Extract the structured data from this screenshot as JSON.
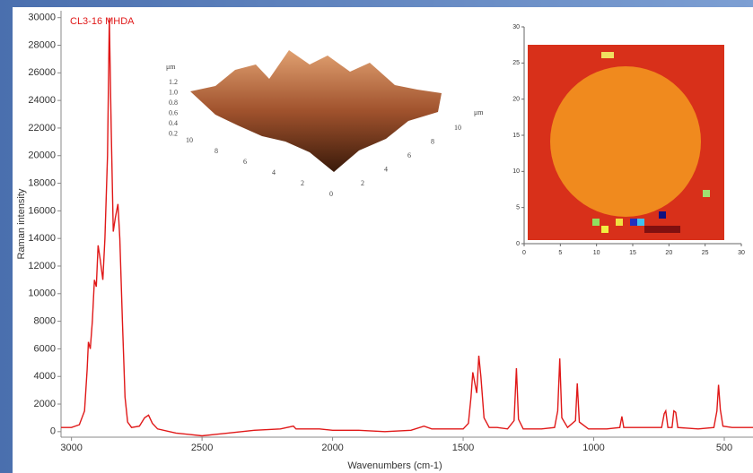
{
  "chart_data": [
    {
      "type": "line",
      "title": "CL3-16 MHDA",
      "x_label": "Wavenumbers (cm-1)",
      "y_label": "Raman intensity",
      "xlim": [
        3040,
        390
      ],
      "ylim": [
        -400,
        30500
      ],
      "xticks": [
        3000,
        2500,
        2000,
        1500,
        1000,
        500
      ],
      "yticks": [
        0,
        2000,
        4000,
        6000,
        8000,
        10000,
        12000,
        14000,
        16000,
        18000,
        20000,
        22000,
        24000,
        26000,
        28000,
        30000
      ],
      "x": [
        3040,
        3000,
        2970,
        2950,
        2940,
        2935,
        2928,
        2920,
        2912,
        2905,
        2898,
        2890,
        2880,
        2872,
        2862,
        2855,
        2848,
        2840,
        2832,
        2822,
        2815,
        2805,
        2795,
        2785,
        2770,
        2740,
        2720,
        2705,
        2690,
        2670,
        2600,
        2550,
        2500,
        2450,
        2400,
        2300,
        2200,
        2150,
        2140,
        2050,
        2000,
        1900,
        1800,
        1700,
        1650,
        1620,
        1550,
        1500,
        1480,
        1470,
        1463,
        1455,
        1448,
        1440,
        1432,
        1420,
        1400,
        1370,
        1330,
        1305,
        1296,
        1288,
        1270,
        1200,
        1150,
        1138,
        1130,
        1122,
        1100,
        1070,
        1063,
        1055,
        1020,
        950,
        900,
        892,
        885,
        800,
        740,
        730,
        724,
        716,
        700,
        693,
        686,
        678,
        600,
        540,
        528,
        522,
        515,
        505,
        470,
        390
      ],
      "series": [
        {
          "name": "CL3-16 MHDA",
          "color": "#e01818",
          "values": [
            300,
            300,
            500,
            1500,
            4500,
            6500,
            6000,
            8000,
            11000,
            10500,
            13500,
            12500,
            11000,
            14000,
            20000,
            30000,
            22000,
            14500,
            15500,
            16500,
            14000,
            8000,
            2500,
            700,
            300,
            400,
            1000,
            1200,
            600,
            200,
            -100,
            -200,
            -300,
            -200,
            -100,
            100,
            200,
            400,
            200,
            200,
            100,
            100,
            0,
            100,
            400,
            200,
            200,
            200,
            600,
            2500,
            4300,
            3500,
            2800,
            5500,
            4000,
            1000,
            300,
            300,
            200,
            800,
            4600,
            900,
            200,
            200,
            300,
            1500,
            5300,
            1000,
            300,
            800,
            3500,
            700,
            200,
            200,
            300,
            1100,
            300,
            300,
            300,
            1300,
            1500,
            300,
            300,
            1500,
            1400,
            300,
            200,
            300,
            1500,
            3400,
            1600,
            400,
            300,
            300
          ]
        }
      ]
    },
    {
      "type": "heatmap",
      "xlim": [
        0,
        30
      ],
      "ylim": [
        0,
        30
      ],
      "xticks": [
        0,
        5,
        10,
        15,
        20,
        25,
        30
      ],
      "yticks": [
        0,
        5,
        10,
        15,
        20,
        25,
        30
      ]
    },
    {
      "type": "surface",
      "z_label": "μm",
      "y_label": "μm",
      "zticks": [
        "1.2",
        "1.0",
        "0.8",
        "0.6",
        "0.4",
        "0.2"
      ],
      "xticks": [
        "10",
        "8",
        "6",
        "4",
        "2",
        "0"
      ],
      "yticks": [
        "2",
        "4",
        "6",
        "8",
        "10"
      ]
    }
  ]
}
